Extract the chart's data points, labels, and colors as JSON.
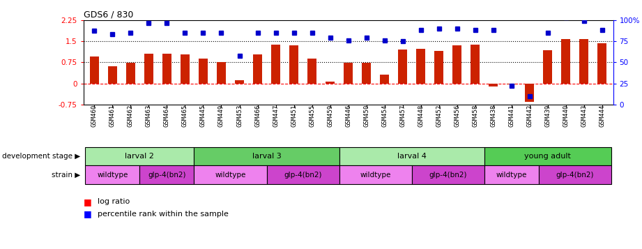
{
  "title": "GDS6 / 830",
  "samples": [
    "GSM460",
    "GSM461",
    "GSM462",
    "GSM463",
    "GSM464",
    "GSM465",
    "GSM445",
    "GSM449",
    "GSM453",
    "GSM466",
    "GSM447",
    "GSM451",
    "GSM455",
    "GSM459",
    "GSM446",
    "GSM450",
    "GSM454",
    "GSM457",
    "GSM448",
    "GSM452",
    "GSM456",
    "GSM458",
    "GSM438",
    "GSM441",
    "GSM442",
    "GSM439",
    "GSM440",
    "GSM443",
    "GSM444"
  ],
  "log_ratio": [
    0.95,
    0.62,
    0.72,
    1.05,
    1.05,
    1.02,
    0.88,
    0.75,
    0.12,
    1.02,
    1.38,
    1.36,
    0.88,
    0.06,
    0.72,
    0.72,
    0.32,
    1.2,
    1.22,
    1.15,
    1.35,
    1.38,
    -0.12,
    -0.04,
    -0.65,
    1.18,
    1.57,
    1.57,
    1.42
  ],
  "percentile": [
    87,
    83,
    85,
    96,
    96,
    85,
    85,
    85,
    58,
    85,
    85,
    85,
    85,
    79,
    76,
    79,
    76,
    75,
    88,
    90,
    90,
    88,
    88,
    22,
    10,
    85,
    103,
    99,
    88
  ],
  "dev_stage_groups": [
    {
      "label": "larval 2",
      "start": 0,
      "end": 5,
      "color": "#aaeaaa"
    },
    {
      "label": "larval 3",
      "start": 6,
      "end": 13,
      "color": "#66cc66"
    },
    {
      "label": "larval 4",
      "start": 14,
      "end": 21,
      "color": "#aaeaaa"
    },
    {
      "label": "young adult",
      "start": 22,
      "end": 28,
      "color": "#55cc55"
    }
  ],
  "strain_groups": [
    {
      "label": "wildtype",
      "start": 0,
      "end": 2,
      "color": "#ee82ee"
    },
    {
      "label": "glp-4(bn2)",
      "start": 3,
      "end": 5,
      "color": "#cc44cc"
    },
    {
      "label": "wildtype",
      "start": 6,
      "end": 9,
      "color": "#ee82ee"
    },
    {
      "label": "glp-4(bn2)",
      "start": 10,
      "end": 13,
      "color": "#cc44cc"
    },
    {
      "label": "wildtype",
      "start": 14,
      "end": 17,
      "color": "#ee82ee"
    },
    {
      "label": "glp-4(bn2)",
      "start": 18,
      "end": 21,
      "color": "#cc44cc"
    },
    {
      "label": "wildtype",
      "start": 22,
      "end": 24,
      "color": "#ee82ee"
    },
    {
      "label": "glp-4(bn2)",
      "start": 25,
      "end": 28,
      "color": "#cc44cc"
    }
  ],
  "ylim_left": [
    -0.75,
    2.25
  ],
  "ylim_right": [
    0,
    100
  ],
  "bar_color": "#cc2200",
  "dot_color": "#0000cc",
  "left_ticks": [
    -0.75,
    0,
    0.75,
    1.5,
    2.25
  ],
  "right_ticks": [
    0,
    25,
    50,
    75,
    100
  ],
  "hline_y": [
    0.75,
    1.5
  ],
  "dev_stage_label": "development stage",
  "strain_label": "strain",
  "legend_bar": "log ratio",
  "legend_dot": "percentile rank within the sample"
}
